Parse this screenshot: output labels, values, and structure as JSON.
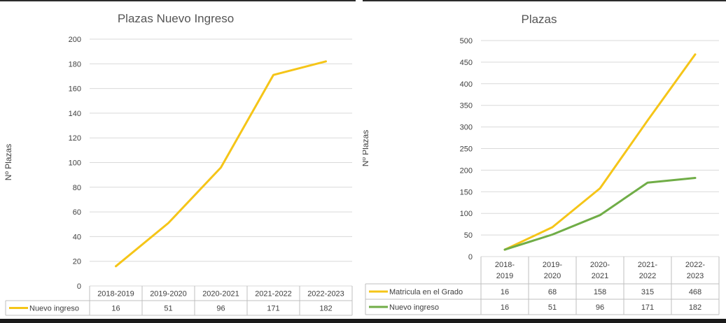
{
  "chart_data": [
    {
      "type": "line",
      "title": "Plazas Nuevo Ingreso",
      "ylabel": "Nº Plazas",
      "xlabel": "",
      "categories": [
        "2018-2019",
        "2019-2020",
        "2020-2021",
        "2021-2022",
        "2022-2023"
      ],
      "ylim": [
        0,
        200
      ],
      "yticks": [
        "0",
        "20",
        "40",
        "60",
        "80",
        "100",
        "120",
        "140",
        "160",
        "180",
        "200"
      ],
      "grid": true,
      "legend": "data-table",
      "series": [
        {
          "name": "Nuevo ingreso",
          "color": "#F5C518",
          "values": [
            16,
            51,
            96,
            171,
            182
          ],
          "labels": [
            "16",
            "51",
            "96",
            "171",
            "182"
          ]
        }
      ]
    },
    {
      "type": "line",
      "title": "Plazas",
      "ylabel": "Nº Plazas",
      "xlabel": "",
      "categories": [
        "2018-2019",
        "2019-2020",
        "2020-2021",
        "2021-2022",
        "2022-2023"
      ],
      "category_lines": [
        [
          "2018-",
          "2019"
        ],
        [
          "2019-",
          "2020"
        ],
        [
          "2020-",
          "2021"
        ],
        [
          "2021-",
          "2022"
        ],
        [
          "2022-",
          "2023"
        ]
      ],
      "ylim": [
        0,
        500
      ],
      "yticks": [
        "0",
        "50",
        "100",
        "150",
        "200",
        "250",
        "300",
        "350",
        "400",
        "450",
        "500"
      ],
      "grid": true,
      "legend": "data-table",
      "series": [
        {
          "name": "Matricula en el Grado",
          "color": "#F5C518",
          "values": [
            16,
            68,
            158,
            315,
            468
          ],
          "labels": [
            "16",
            "68",
            "158",
            "315",
            "468"
          ]
        },
        {
          "name": "Nuevo ingreso",
          "color": "#70AD47",
          "values": [
            16,
            51,
            96,
            171,
            182
          ],
          "labels": [
            "16",
            "51",
            "96",
            "171",
            "182"
          ]
        }
      ]
    }
  ]
}
